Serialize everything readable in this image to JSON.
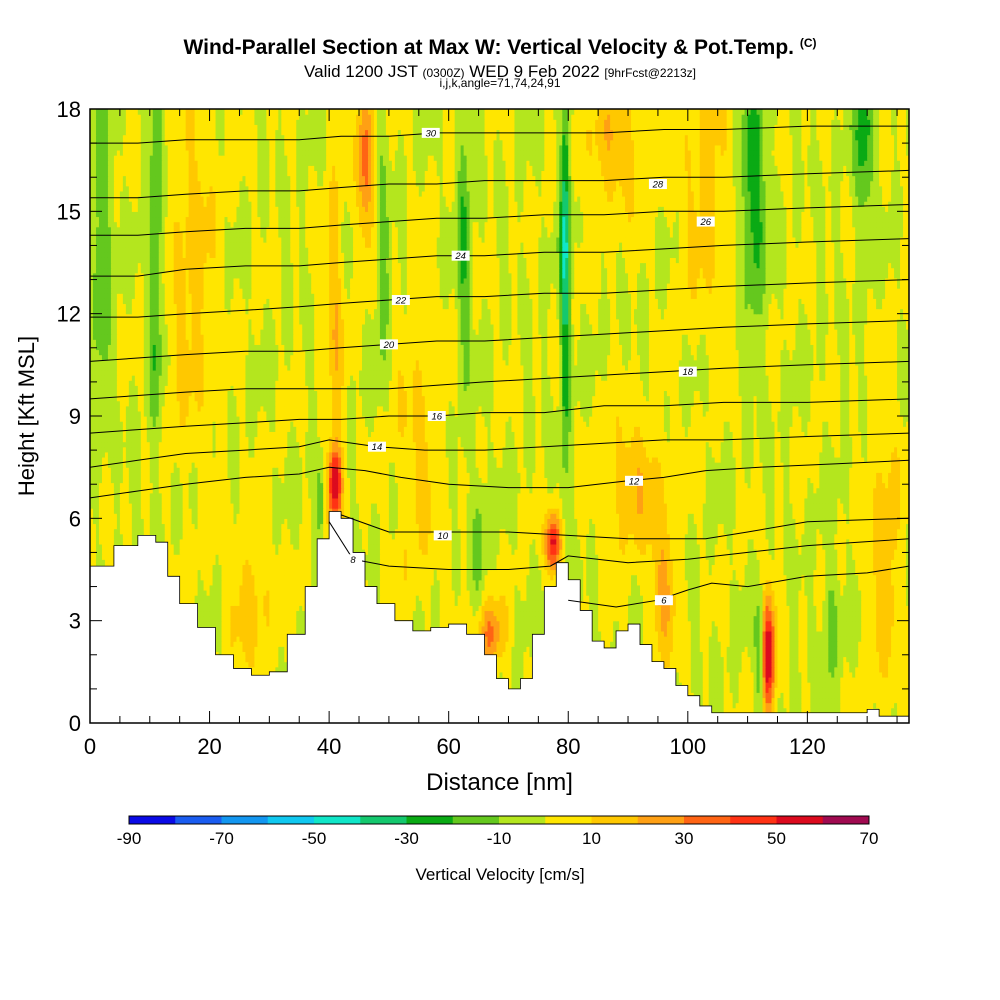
{
  "chart_data": {
    "type": "heatmap",
    "title": "Wind-Parallel Section at Max W: Vertical Velocity & Pot.Temp.",
    "title_mark": "(C)",
    "subtitle_valid": "Valid 1200 JST",
    "subtitle_utc": "(0300Z)",
    "subtitle_date": "WED 9 Feb 2022",
    "subtitle_fcst": "[9hrFcst@2213z]",
    "subtitle_params": "i,j,k,angle=71,74,24,91",
    "xlabel": "Distance [nm]",
    "ylabel": "Height [Kft MSL]",
    "xlim": [
      0,
      137
    ],
    "ylim": [
      0,
      18
    ],
    "x_ticks": [
      {
        "v": 0,
        "label": "0"
      },
      {
        "v": 20,
        "label": "20"
      },
      {
        "v": 40,
        "label": "40"
      },
      {
        "v": 60,
        "label": "60"
      },
      {
        "v": 80,
        "label": "80"
      },
      {
        "v": 100,
        "label": "100"
      },
      {
        "v": 120,
        "label": "120"
      }
    ],
    "y_ticks": [
      {
        "v": 0,
        "label": "0"
      },
      {
        "v": 3,
        "label": "3"
      },
      {
        "v": 6,
        "label": "6"
      },
      {
        "v": 9,
        "label": "9"
      },
      {
        "v": 12,
        "label": "12"
      },
      {
        "v": 15,
        "label": "15"
      },
      {
        "v": 18,
        "label": "18"
      }
    ],
    "colorbar": {
      "label": "Vertical Velocity [cm/s]",
      "min": -90,
      "max": 70,
      "step": 10,
      "tick_labels": [
        {
          "v": -90,
          "label": "-90"
        },
        {
          "v": -70,
          "label": "-70"
        },
        {
          "v": -50,
          "label": "-50"
        },
        {
          "v": -30,
          "label": "-30"
        },
        {
          "v": -10,
          "label": "-10"
        },
        {
          "v": 10,
          "label": "10"
        },
        {
          "v": 30,
          "label": "30"
        },
        {
          "v": 50,
          "label": "50"
        },
        {
          "v": 70,
          "label": "70"
        }
      ],
      "colors": [
        "#0a0ae6",
        "#1a5cf0",
        "#1296f0",
        "#10c8f0",
        "#10e6c8",
        "#14c86e",
        "#0aaa14",
        "#64c81e",
        "#b4e61e",
        "#ffe600",
        "#ffc800",
        "#ffa014",
        "#ff6414",
        "#ff3214",
        "#dc0a1e",
        "#a00a50",
        "#6e0a8c"
      ]
    },
    "terrain": [
      [
        0,
        4.6
      ],
      [
        4,
        5.2
      ],
      [
        8,
        5.5
      ],
      [
        11,
        5.3
      ],
      [
        13,
        4.3
      ],
      [
        15,
        3.5
      ],
      [
        18,
        2.8
      ],
      [
        21,
        2.0
      ],
      [
        24,
        1.6
      ],
      [
        27,
        1.4
      ],
      [
        30,
        1.5
      ],
      [
        33,
        2.6
      ],
      [
        36,
        4.0
      ],
      [
        38,
        5.4
      ],
      [
        40,
        6.2
      ],
      [
        42,
        6.0
      ],
      [
        44,
        5.0
      ],
      [
        46,
        4.0
      ],
      [
        48,
        3.5
      ],
      [
        51,
        3.0
      ],
      [
        54,
        2.7
      ],
      [
        57,
        2.8
      ],
      [
        60,
        2.9
      ],
      [
        63,
        2.6
      ],
      [
        66,
        2.0
      ],
      [
        68,
        1.3
      ],
      [
        70,
        1.0
      ],
      [
        72,
        1.3
      ],
      [
        74,
        2.6
      ],
      [
        76,
        4.0
      ],
      [
        78,
        4.7
      ],
      [
        80,
        4.2
      ],
      [
        82,
        3.3
      ],
      [
        84,
        2.4
      ],
      [
        86,
        2.2
      ],
      [
        88,
        2.7
      ],
      [
        90,
        2.9
      ],
      [
        92,
        2.3
      ],
      [
        94,
        1.8
      ],
      [
        96,
        1.6
      ],
      [
        98,
        1.1
      ],
      [
        100,
        0.8
      ],
      [
        102,
        0.5
      ],
      [
        104,
        0.3
      ],
      [
        110,
        0.3
      ],
      [
        120,
        0.3
      ],
      [
        128,
        0.3
      ],
      [
        130,
        0.4
      ],
      [
        132,
        0.2
      ],
      [
        137,
        0.3
      ]
    ],
    "background_w": 0,
    "updrafts": [
      {
        "x": 41,
        "y": 7.0,
        "w": 60,
        "sx": 0.8,
        "sy": 0.8
      },
      {
        "x": 41,
        "y": 12.0,
        "w": 18,
        "sx": 1.0,
        "sy": 3.0
      },
      {
        "x": 46,
        "y": 16.5,
        "w": 35,
        "sx": 1.0,
        "sy": 1.6
      },
      {
        "x": 77.5,
        "y": 5.3,
        "w": 55,
        "sx": 0.9,
        "sy": 0.6
      },
      {
        "x": 67,
        "y": 2.6,
        "w": 32,
        "sx": 1.6,
        "sy": 0.7
      },
      {
        "x": 91,
        "y": 7.0,
        "w": 18,
        "sx": 4.0,
        "sy": 1.4
      },
      {
        "x": 113.5,
        "y": 2.0,
        "w": 60,
        "sx": 0.8,
        "sy": 1.2
      },
      {
        "x": 88,
        "y": 17.0,
        "w": 18,
        "sx": 4.0,
        "sy": 1.5
      },
      {
        "x": 96,
        "y": 3.8,
        "w": 22,
        "sx": 1.5,
        "sy": 1.4
      },
      {
        "x": 17,
        "y": 13.5,
        "w": 14,
        "sx": 3.0,
        "sy": 4.0
      },
      {
        "x": 55,
        "y": 8.0,
        "w": 12,
        "sx": 3.0,
        "sy": 3.0
      },
      {
        "x": 103,
        "y": 16.0,
        "w": 14,
        "sx": 3.0,
        "sy": 3.0
      },
      {
        "x": 133,
        "y": 5.0,
        "w": 16,
        "sx": 2.0,
        "sy": 3.0
      },
      {
        "x": 27,
        "y": 3.5,
        "w": 14,
        "sx": 3.0,
        "sy": 1.5
      }
    ],
    "downdrafts": [
      {
        "x": 79.5,
        "y": 14.0,
        "w": -40,
        "sx": 0.6,
        "sy": 4.0
      },
      {
        "x": 11,
        "y": 14.0,
        "w": -24,
        "sx": 0.8,
        "sy": 4.0
      },
      {
        "x": 2,
        "y": 14.0,
        "w": -20,
        "sx": 1.2,
        "sy": 3.0
      },
      {
        "x": 111,
        "y": 15.5,
        "w": -28,
        "sx": 1.5,
        "sy": 2.5
      },
      {
        "x": 62.5,
        "y": 14.0,
        "w": -20,
        "sx": 0.8,
        "sy": 3.0
      },
      {
        "x": 129.5,
        "y": 17.0,
        "w": -24,
        "sx": 1.2,
        "sy": 1.8
      },
      {
        "x": 38.5,
        "y": 6.5,
        "w": -22,
        "sx": 0.6,
        "sy": 0.8
      },
      {
        "x": 112,
        "y": 2.0,
        "w": -24,
        "sx": 0.5,
        "sy": 1.2
      },
      {
        "x": 124,
        "y": 3.0,
        "w": -16,
        "sx": 1.0,
        "sy": 1.2
      },
      {
        "x": 49,
        "y": 13.5,
        "w": -16,
        "sx": 0.8,
        "sy": 2.5
      },
      {
        "x": 65,
        "y": 5.5,
        "w": -14,
        "sx": 0.8,
        "sy": 1.5
      }
    ],
    "isentropes": [
      {
        "theta": 6,
        "pts": [
          [
            80,
            3.6
          ],
          [
            88,
            3.4
          ],
          [
            95,
            3.6
          ],
          [
            100,
            3.9
          ],
          [
            104,
            4.1
          ],
          [
            110,
            4.0
          ],
          [
            120,
            4.3
          ],
          [
            130,
            4.4
          ],
          [
            137,
            4.6
          ]
        ],
        "label": {
          "x": 96,
          "y": 3.6
        }
      },
      {
        "theta": 8,
        "pts": [
          [
            40,
            5.9
          ],
          [
            44,
            4.8
          ],
          [
            50,
            4.6
          ],
          [
            60,
            4.5
          ],
          [
            70,
            4.5
          ],
          [
            77,
            4.6
          ],
          [
            80,
            4.9
          ],
          [
            90,
            4.7
          ],
          [
            100,
            4.8
          ],
          [
            110,
            5.0
          ],
          [
            120,
            5.2
          ],
          [
            137,
            5.4
          ]
        ],
        "label": {
          "x": 44,
          "y": 4.8
        }
      },
      {
        "theta": 10,
        "pts": [
          [
            42,
            6.1
          ],
          [
            50,
            5.6
          ],
          [
            60,
            5.6
          ],
          [
            70,
            5.6
          ],
          [
            80,
            5.5
          ],
          [
            90,
            5.4
          ],
          [
            97,
            5.4
          ],
          [
            103,
            5.4
          ],
          [
            110,
            5.6
          ],
          [
            120,
            5.9
          ],
          [
            137,
            6.0
          ]
        ],
        "label": {
          "x": 59,
          "y": 5.5
        }
      },
      {
        "theta": 12,
        "pts": [
          [
            0,
            6.6
          ],
          [
            8,
            6.8
          ],
          [
            16,
            7.0
          ],
          [
            26,
            7.2
          ],
          [
            35,
            7.3
          ],
          [
            40,
            7.5
          ],
          [
            46,
            7.4
          ],
          [
            52,
            7.2
          ],
          [
            60,
            7.0
          ],
          [
            70,
            6.9
          ],
          [
            80,
            6.9
          ],
          [
            90,
            7.1
          ],
          [
            96,
            7.2
          ],
          [
            103,
            7.4
          ],
          [
            112,
            7.5
          ],
          [
            125,
            7.6
          ],
          [
            137,
            7.7
          ]
        ],
        "label": {
          "x": 91,
          "y": 7.1
        }
      },
      {
        "theta": 14,
        "pts": [
          [
            0,
            7.5
          ],
          [
            8,
            7.7
          ],
          [
            16,
            7.9
          ],
          [
            26,
            8.0
          ],
          [
            35,
            8.1
          ],
          [
            40,
            8.3
          ],
          [
            48,
            8.1
          ],
          [
            56,
            8.0
          ],
          [
            66,
            8.0
          ],
          [
            76,
            8.1
          ],
          [
            86,
            8.2
          ],
          [
            96,
            8.3
          ],
          [
            106,
            8.3
          ],
          [
            120,
            8.4
          ],
          [
            137,
            8.5
          ]
        ],
        "label": {
          "x": 48,
          "y": 8.1
        }
      },
      {
        "theta": 16,
        "pts": [
          [
            0,
            8.5
          ],
          [
            8,
            8.6
          ],
          [
            16,
            8.7
          ],
          [
            26,
            8.8
          ],
          [
            35,
            8.9
          ],
          [
            42,
            8.9
          ],
          [
            50,
            9.0
          ],
          [
            58,
            9.0
          ],
          [
            66,
            9.1
          ],
          [
            76,
            9.1
          ],
          [
            86,
            9.3
          ],
          [
            96,
            9.3
          ],
          [
            106,
            9.4
          ],
          [
            120,
            9.4
          ],
          [
            137,
            9.5
          ]
        ],
        "label": {
          "x": 58,
          "y": 9.0
        }
      },
      {
        "theta": 18,
        "pts": [
          [
            0,
            9.5
          ],
          [
            8,
            9.6
          ],
          [
            16,
            9.7
          ],
          [
            26,
            9.8
          ],
          [
            35,
            9.8
          ],
          [
            42,
            9.8
          ],
          [
            50,
            9.8
          ],
          [
            58,
            9.9
          ],
          [
            66,
            10.0
          ],
          [
            76,
            10.1
          ],
          [
            86,
            10.2
          ],
          [
            96,
            10.3
          ],
          [
            106,
            10.4
          ],
          [
            120,
            10.5
          ],
          [
            137,
            10.6
          ]
        ],
        "label": {
          "x": 100,
          "y": 10.3
        }
      },
      {
        "theta": 20,
        "pts": [
          [
            0,
            10.6
          ],
          [
            8,
            10.7
          ],
          [
            16,
            10.8
          ],
          [
            26,
            10.9
          ],
          [
            35,
            10.9
          ],
          [
            42,
            11.0
          ],
          [
            50,
            11.1
          ],
          [
            58,
            11.2
          ],
          [
            66,
            11.2
          ],
          [
            76,
            11.3
          ],
          [
            86,
            11.4
          ],
          [
            96,
            11.5
          ],
          [
            106,
            11.6
          ],
          [
            120,
            11.7
          ],
          [
            137,
            11.8
          ]
        ],
        "label": {
          "x": 50,
          "y": 11.1
        }
      },
      {
        "theta": 22,
        "pts": [
          [
            0,
            11.9
          ],
          [
            8,
            11.9
          ],
          [
            16,
            12.0
          ],
          [
            26,
            12.1
          ],
          [
            35,
            12.2
          ],
          [
            42,
            12.3
          ],
          [
            50,
            12.4
          ],
          [
            58,
            12.5
          ],
          [
            66,
            12.5
          ],
          [
            76,
            12.6
          ],
          [
            86,
            12.6
          ],
          [
            96,
            12.7
          ],
          [
            106,
            12.8
          ],
          [
            120,
            12.9
          ],
          [
            137,
            13.0
          ]
        ],
        "label": {
          "x": 52,
          "y": 12.4
        }
      },
      {
        "theta": 24,
        "pts": [
          [
            0,
            13.1
          ],
          [
            8,
            13.1
          ],
          [
            16,
            13.3
          ],
          [
            26,
            13.4
          ],
          [
            35,
            13.4
          ],
          [
            42,
            13.5
          ],
          [
            50,
            13.6
          ],
          [
            58,
            13.7
          ],
          [
            66,
            13.7
          ],
          [
            76,
            13.8
          ],
          [
            86,
            13.8
          ],
          [
            96,
            13.9
          ],
          [
            106,
            14.0
          ],
          [
            120,
            14.1
          ],
          [
            137,
            14.2
          ]
        ],
        "label": {
          "x": 62,
          "y": 13.7
        }
      },
      {
        "theta": 26,
        "pts": [
          [
            0,
            14.3
          ],
          [
            8,
            14.3
          ],
          [
            16,
            14.4
          ],
          [
            26,
            14.5
          ],
          [
            35,
            14.5
          ],
          [
            42,
            14.6
          ],
          [
            50,
            14.7
          ],
          [
            58,
            14.8
          ],
          [
            66,
            14.8
          ],
          [
            76,
            14.9
          ],
          [
            86,
            14.9
          ],
          [
            96,
            15.0
          ],
          [
            106,
            15.0
          ],
          [
            120,
            15.1
          ],
          [
            137,
            15.2
          ]
        ],
        "label": {
          "x": 103,
          "y": 14.7
        }
      },
      {
        "theta": 28,
        "pts": [
          [
            0,
            15.4
          ],
          [
            8,
            15.4
          ],
          [
            16,
            15.5
          ],
          [
            26,
            15.6
          ],
          [
            35,
            15.6
          ],
          [
            42,
            15.7
          ],
          [
            50,
            15.8
          ],
          [
            58,
            15.8
          ],
          [
            66,
            15.9
          ],
          [
            76,
            15.9
          ],
          [
            86,
            15.9
          ],
          [
            96,
            16.0
          ],
          [
            106,
            16.0
          ],
          [
            120,
            16.1
          ],
          [
            137,
            16.2
          ]
        ],
        "label": {
          "x": 95,
          "y": 15.8
        }
      },
      {
        "theta": 30,
        "pts": [
          [
            0,
            17.0
          ],
          [
            8,
            17.0
          ],
          [
            16,
            17.1
          ],
          [
            26,
            17.1
          ],
          [
            35,
            17.1
          ],
          [
            42,
            17.2
          ],
          [
            50,
            17.2
          ],
          [
            58,
            17.3
          ],
          [
            66,
            17.3
          ],
          [
            76,
            17.3
          ],
          [
            86,
            17.3
          ],
          [
            96,
            17.4
          ],
          [
            106,
            17.4
          ],
          [
            120,
            17.5
          ],
          [
            137,
            17.5
          ]
        ],
        "label": {
          "x": 57,
          "y": 17.3
        }
      }
    ]
  }
}
